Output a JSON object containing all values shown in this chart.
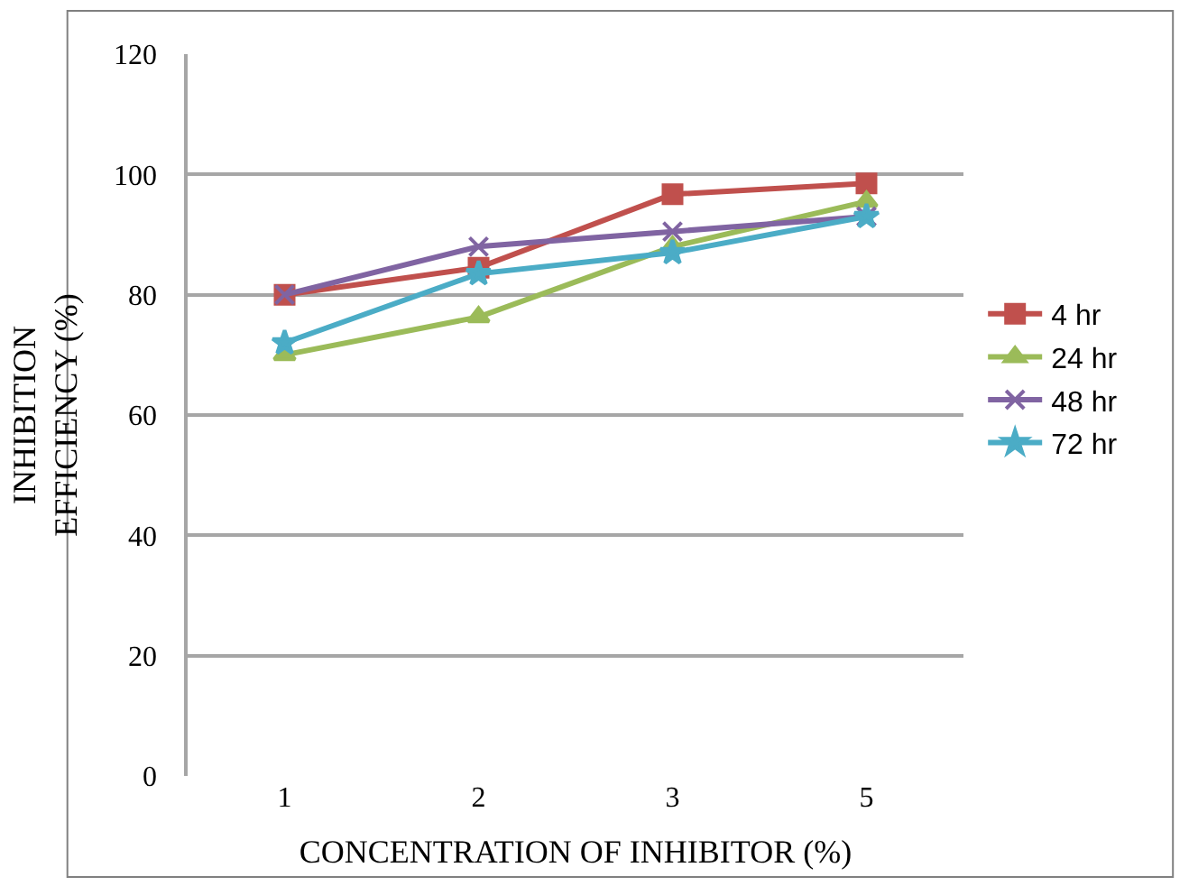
{
  "chart_data": {
    "type": "line",
    "xlabel": "CONCENTRATION OF INHIBITOR (%)",
    "ylabel": "INHIBITION\nEFFICIENCY (%)",
    "categories": [
      "1",
      "2",
      "3",
      "5"
    ],
    "series": [
      {
        "name": "4 hr",
        "color": "#c0504d",
        "marker": "square",
        "values": [
          80,
          84.5,
          96.7,
          98.5
        ]
      },
      {
        "name": "24 hr",
        "color": "#9bbb59",
        "marker": "triangle",
        "values": [
          70,
          76.3,
          88,
          95.5
        ]
      },
      {
        "name": "48 hr",
        "color": "#8064a2",
        "marker": "cross",
        "values": [
          80,
          88,
          90.5,
          93
        ]
      },
      {
        "name": "72 hr",
        "color": "#4bacc6",
        "marker": "star",
        "values": [
          72,
          83.5,
          87,
          93
        ]
      }
    ],
    "ylim": [
      0,
      120
    ],
    "yticks": [
      0,
      20,
      40,
      60,
      80,
      100,
      120
    ],
    "grid": "y",
    "legend": "right"
  }
}
